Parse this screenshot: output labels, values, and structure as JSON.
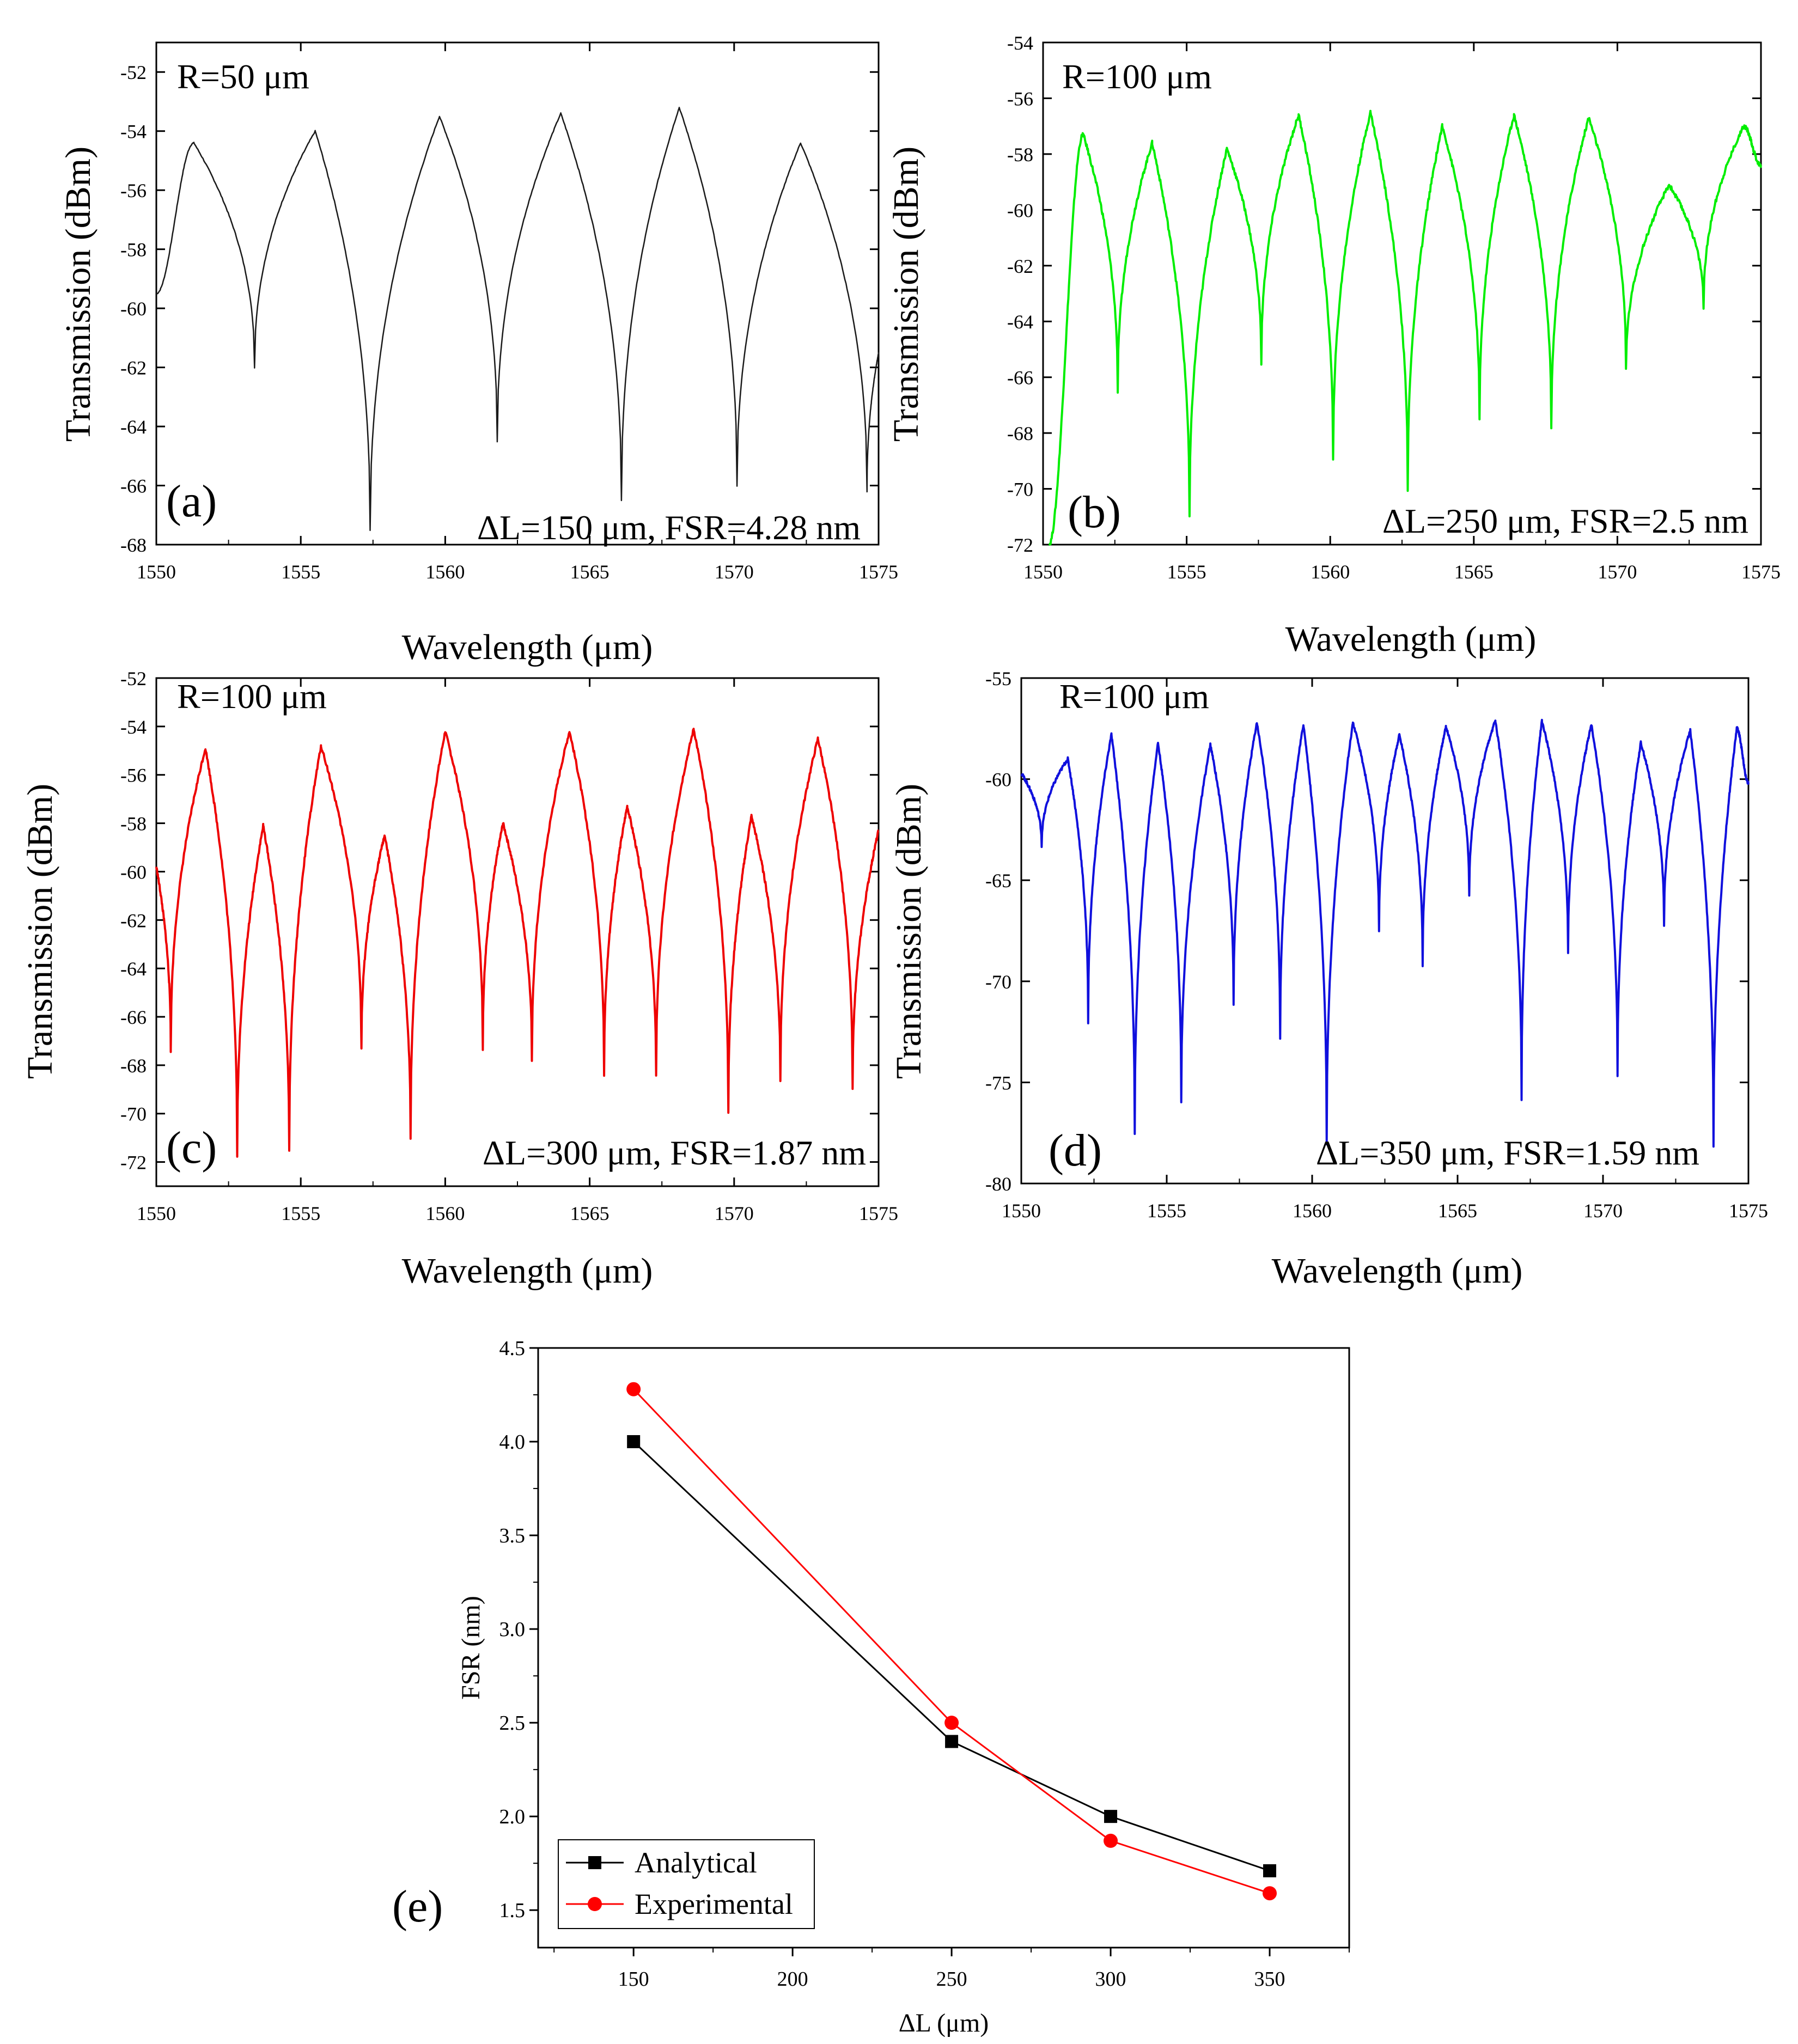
{
  "chart_data": [
    {
      "id": "a",
      "type": "line",
      "panel_label": "(a)",
      "radius_label": "R=50 μm",
      "info_label": "ΔL=150 μm, FSR=4.28 nm",
      "xlabel": "Wavelength (μm)",
      "ylabel": "Transmission (dBm)",
      "xlim": [
        1550,
        1575
      ],
      "ylim": [
        -68,
        -51
      ],
      "xticks": [
        1550,
        1555,
        1560,
        1565,
        1570,
        1575
      ],
      "xtick_labels": [
        "1550",
        "1555",
        "1560",
        "1565",
        "1570",
        "1575"
      ],
      "yticks": [
        -52,
        -54,
        -56,
        -58,
        -60,
        -62,
        -64,
        -66,
        -68
      ],
      "ytick_labels": [
        "-52",
        "-54",
        "-56",
        "-58",
        "-60",
        "-62",
        "-64",
        "-66",
        "-68"
      ],
      "color": "#1a1a1a",
      "series": [
        {
          "name": "R=50 μm",
          "x_start": 1550,
          "x_end": 1575,
          "fsr_nm": 4.28,
          "dips": [
            {
              "x": 1553.4,
              "y": -62
            },
            {
              "x": 1557.4,
              "y": -67.5
            },
            {
              "x": 1561.8,
              "y": -64.5
            },
            {
              "x": 1566.1,
              "y": -66.5
            },
            {
              "x": 1570.1,
              "y": -66
            },
            {
              "x": 1574.6,
              "y": -66.2
            }
          ],
          "peaks": [
            {
              "x": 1551.3,
              "y": -54.4
            },
            {
              "x": 1555.5,
              "y": -54
            },
            {
              "x": 1559.8,
              "y": -53.5
            },
            {
              "x": 1564.0,
              "y": -53.4
            },
            {
              "x": 1568.1,
              "y": -53.2
            },
            {
              "x": 1572.3,
              "y": -54.4
            }
          ],
          "y_start": -59.5,
          "y_end": -61.5
        }
      ]
    },
    {
      "id": "b",
      "type": "line",
      "panel_label": "(b)",
      "radius_label": "R=100 μm",
      "info_label": "ΔL=250 μm, FSR=2.5 nm",
      "xlabel": "Wavelength (μm)",
      "ylabel": "Transmission (dBm)",
      "xlim": [
        1550,
        1575
      ],
      "ylim": [
        -72,
        -54
      ],
      "xticks": [
        1550,
        1555,
        1560,
        1565,
        1570,
        1575
      ],
      "xtick_labels": [
        "1550",
        "1555",
        "1560",
        "1565",
        "1570",
        "1575"
      ],
      "yticks": [
        -54,
        -56,
        -58,
        -60,
        -62,
        -64,
        -66,
        -68,
        -70,
        -72
      ],
      "ytick_labels": [
        "-54",
        "-56",
        "-58",
        "-60",
        "-62",
        "-64",
        "-66",
        "-68",
        "-70",
        "-72"
      ],
      "color": "#00ee00",
      "series": [
        {
          "name": "R=100 μm",
          "x_start": 1550.2,
          "x_end": 1575,
          "fsr_nm": 2.5,
          "dips": [
            {
              "x": 1552.6,
              "y": -66.5
            },
            {
              "x": 1555.1,
              "y": -71
            },
            {
              "x": 1557.6,
              "y": -65.5
            },
            {
              "x": 1560.1,
              "y": -69
            },
            {
              "x": 1562.7,
              "y": -70
            },
            {
              "x": 1565.2,
              "y": -67.5
            },
            {
              "x": 1567.7,
              "y": -67.8
            },
            {
              "x": 1570.3,
              "y": -65.7
            },
            {
              "x": 1573.0,
              "y": -63.5
            }
          ],
          "peaks": [
            {
              "x": 1551.4,
              "y": -57.3
            },
            {
              "x": 1553.8,
              "y": -57.6
            },
            {
              "x": 1556.4,
              "y": -57.8
            },
            {
              "x": 1558.9,
              "y": -56.6
            },
            {
              "x": 1561.4,
              "y": -56.5
            },
            {
              "x": 1563.9,
              "y": -57.0
            },
            {
              "x": 1566.4,
              "y": -56.6
            },
            {
              "x": 1569.0,
              "y": -56.7
            },
            {
              "x": 1571.8,
              "y": -59.1
            },
            {
              "x": 1574.4,
              "y": -57.0
            }
          ],
          "y_start": -72,
          "y_end": -58.4
        }
      ]
    },
    {
      "id": "c",
      "type": "line",
      "panel_label": "(c)",
      "radius_label": "R=100 μm",
      "info_label": "ΔL=300 μm, FSR=1.87 nm",
      "xlabel": "Wavelength (μm)",
      "ylabel": "Transmission (dBm)",
      "xlim": [
        1550,
        1575
      ],
      "ylim": [
        -73,
        -52
      ],
      "xticks": [
        1550,
        1555,
        1560,
        1565,
        1570,
        1575
      ],
      "xtick_labels": [
        "1550",
        "1555",
        "1560",
        "1565",
        "1570",
        "1575"
      ],
      "yticks": [
        -52,
        -54,
        -56,
        -58,
        -60,
        -62,
        -64,
        -66,
        -68,
        -70,
        -72
      ],
      "ytick_labels": [
        "-52",
        "-54",
        "-56",
        "-58",
        "-60",
        "-62",
        "-64",
        "-66",
        "-68",
        "-70",
        "-72"
      ],
      "color": "#ee0000",
      "series": [
        {
          "name": "R=100 μm",
          "x_start": 1550,
          "x_end": 1575,
          "fsr_nm": 1.87,
          "dips": [
            {
              "x": 1550.5,
              "y": -67.4
            },
            {
              "x": 1552.8,
              "y": -71.7
            },
            {
              "x": 1554.6,
              "y": -71.6
            },
            {
              "x": 1557.1,
              "y": -67.3
            },
            {
              "x": 1558.8,
              "y": -71.0
            },
            {
              "x": 1561.3,
              "y": -67.3
            },
            {
              "x": 1563.0,
              "y": -67.8
            },
            {
              "x": 1565.5,
              "y": -68.4
            },
            {
              "x": 1567.3,
              "y": -68.4
            },
            {
              "x": 1569.8,
              "y": -69.9
            },
            {
              "x": 1571.6,
              "y": -68.6
            },
            {
              "x": 1574.1,
              "y": -68.9
            }
          ],
          "peaks": [
            {
              "x": 1551.7,
              "y": -54.9
            },
            {
              "x": 1553.7,
              "y": -58.1
            },
            {
              "x": 1555.7,
              "y": -54.8
            },
            {
              "x": 1557.9,
              "y": -58.5
            },
            {
              "x": 1560.0,
              "y": -54.2
            },
            {
              "x": 1562.0,
              "y": -58.0
            },
            {
              "x": 1564.3,
              "y": -54.2
            },
            {
              "x": 1566.3,
              "y": -57.3
            },
            {
              "x": 1568.6,
              "y": -54.1
            },
            {
              "x": 1570.6,
              "y": -57.7
            },
            {
              "x": 1572.9,
              "y": -54.5
            }
          ],
          "y_start": -59.8,
          "y_end": -58.3
        }
      ]
    },
    {
      "id": "d",
      "type": "line",
      "panel_label": "(d)",
      "radius_label": "R=100 μm",
      "info_label": "ΔL=350 μm, FSR=1.59 nm",
      "xlabel": "Wavelength (μm)",
      "ylabel": "Transmission (dBm)",
      "xlim": [
        1550,
        1575
      ],
      "ylim": [
        -80,
        -55
      ],
      "xticks": [
        1550,
        1555,
        1560,
        1565,
        1570,
        1575
      ],
      "xtick_labels": [
        "1550",
        "1555",
        "1560",
        "1565",
        "1570",
        "1575"
      ],
      "yticks": [
        -55,
        -60,
        -65,
        -70,
        -75,
        -80
      ],
      "ytick_labels": [
        "-55",
        "-60",
        "-65",
        "-70",
        "-75",
        "-80"
      ],
      "color": "#1010dd",
      "series": [
        {
          "name": "R=100 μm",
          "x_start": 1550,
          "x_end": 1575,
          "fsr_nm": 1.59,
          "dips": [
            {
              "x": 1550.7,
              "y": -63.3
            },
            {
              "x": 1552.3,
              "y": -72.0
            },
            {
              "x": 1553.9,
              "y": -77.5
            },
            {
              "x": 1555.5,
              "y": -76.0
            },
            {
              "x": 1557.3,
              "y": -71.2
            },
            {
              "x": 1558.9,
              "y": -72.8
            },
            {
              "x": 1560.5,
              "y": -78.0
            },
            {
              "x": 1562.3,
              "y": -67.5
            },
            {
              "x": 1563.8,
              "y": -69.2
            },
            {
              "x": 1565.4,
              "y": -65.7
            },
            {
              "x": 1567.2,
              "y": -75.8
            },
            {
              "x": 1568.8,
              "y": -68.6
            },
            {
              "x": 1570.5,
              "y": -74.7
            },
            {
              "x": 1572.1,
              "y": -67.2
            },
            {
              "x": 1573.8,
              "y": -78.2
            }
          ],
          "peaks": [
            {
              "x": 1551.6,
              "y": -59.0
            },
            {
              "x": 1553.1,
              "y": -57.8
            },
            {
              "x": 1554.7,
              "y": -58.2
            },
            {
              "x": 1556.5,
              "y": -58.3
            },
            {
              "x": 1558.1,
              "y": -57.2
            },
            {
              "x": 1559.7,
              "y": -57.3
            },
            {
              "x": 1561.4,
              "y": -57.2
            },
            {
              "x": 1563.0,
              "y": -57.8
            },
            {
              "x": 1564.6,
              "y": -57.4
            },
            {
              "x": 1566.3,
              "y": -57.1
            },
            {
              "x": 1567.9,
              "y": -57.1
            },
            {
              "x": 1569.6,
              "y": -57.3
            },
            {
              "x": 1571.3,
              "y": -58.2
            },
            {
              "x": 1573.0,
              "y": -57.6
            },
            {
              "x": 1574.6,
              "y": -57.5
            }
          ],
          "y_start": -59.7,
          "y_end": -60.2
        }
      ]
    },
    {
      "id": "e",
      "type": "line",
      "panel_label": "(e)",
      "xlabel": "ΔL (μm)",
      "ylabel": "FSR (nm)",
      "xlim": [
        120,
        375
      ],
      "ylim": [
        1.3,
        4.5
      ],
      "xticks": [
        150,
        200,
        250,
        300,
        350
      ],
      "xtick_labels": [
        "150",
        "200",
        "250",
        "300",
        "350"
      ],
      "yticks": [
        1.5,
        2.0,
        2.5,
        3.0,
        3.5,
        4.0,
        4.5
      ],
      "ytick_labels": [
        "1.5",
        "2.0",
        "2.5",
        "3.0",
        "3.5",
        "4.0",
        "4.5"
      ],
      "legend_position": "bottom-left",
      "x": [
        150,
        250,
        300,
        350
      ],
      "series": [
        {
          "name": "Analytical",
          "color": "#000000",
          "marker": "square",
          "values": [
            4.0,
            2.4,
            2.0,
            1.71
          ]
        },
        {
          "name": "Experimental",
          "color": "#ff0000",
          "marker": "circle",
          "values": [
            4.28,
            2.5,
            1.87,
            1.59
          ]
        }
      ]
    }
  ]
}
